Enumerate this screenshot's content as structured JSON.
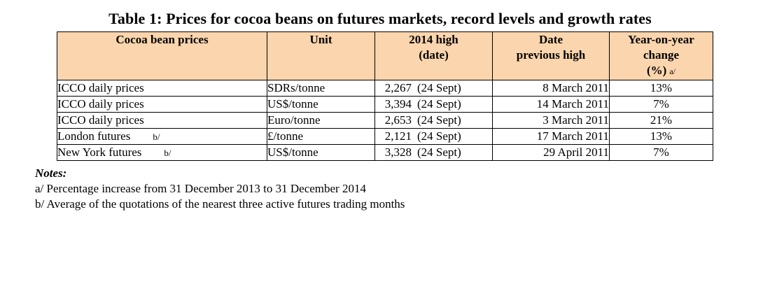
{
  "title": "Table 1: Prices for cocoa beans on futures markets, record levels and growth rates",
  "headers": {
    "prices": "Cocoa bean prices",
    "unit": "Unit",
    "high_line1": "2014 high",
    "high_line2": "(date)",
    "date_line1": "Date",
    "date_line2": "previous high",
    "change_line1": "Year-on-year",
    "change_line2": "change",
    "change_line3": "(%)",
    "change_note": "a/"
  },
  "rows": [
    {
      "name": "ICCO daily prices",
      "note": "",
      "unit": "SDRs/tonne",
      "high": "2,267",
      "high_date": "(24 Sept)",
      "prev": "8 March 2011",
      "change": "13%"
    },
    {
      "name": "ICCO daily prices",
      "note": "",
      "unit": "US$/tonne",
      "high": "3,394",
      "high_date": "(24 Sept)",
      "prev": "14 March 2011",
      "change": "7%"
    },
    {
      "name": "ICCO daily prices",
      "note": "",
      "unit": "Euro/tonne",
      "high": "2,653",
      "high_date": "(24 Sept)",
      "prev": "3 March 2011",
      "change": "21%"
    },
    {
      "name": "London futures",
      "note": "b/",
      "unit": "£/tonne",
      "high": "2,121",
      "high_date": "(24 Sept)",
      "prev": "17 March 2011",
      "change": "13%"
    },
    {
      "name": "New York futures",
      "note": "b/",
      "unit": "US$/tonne",
      "high": "3,328",
      "high_date": "(24 Sept)",
      "prev": "29 April 2011",
      "change": "7%"
    }
  ],
  "notes": {
    "heading": "Notes:",
    "a": "a/  Percentage increase from 31 December 2013 to 31 December 2014",
    "b": "b/  Average of the quotations of the nearest three active futures trading months"
  }
}
